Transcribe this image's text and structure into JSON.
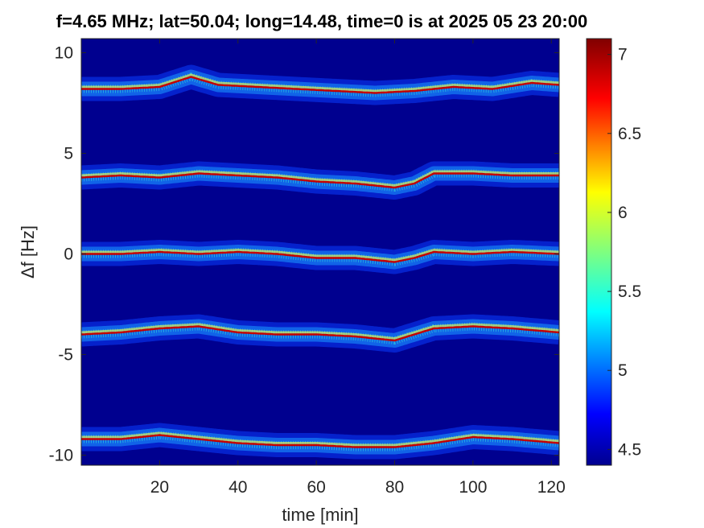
{
  "chart_data": {
    "type": "heatmap",
    "title": "f=4.65 MHz;  lat=50.04; long=14.48, time=0 is at 2025 05 23 20:00",
    "xlabel": "time [min]",
    "ylabel": "Δf [Hz]",
    "xlim": [
      0,
      122
    ],
    "ylim": [
      -10.5,
      10.7
    ],
    "xticks": [
      20,
      40,
      60,
      80,
      100,
      120
    ],
    "yticks": [
      10,
      5,
      0,
      -5,
      -10
    ],
    "ytick_labels": [
      "10",
      "5",
      "0",
      "-5",
      "-10"
    ],
    "colorbar": {
      "range": [
        4.4,
        7.1
      ],
      "ticks": [
        4.5,
        5,
        5.5,
        6,
        6.5,
        7
      ],
      "tick_labels": [
        "4.5",
        "5",
        "5.5",
        "6",
        "6.5",
        "7"
      ],
      "colormap": "jet"
    },
    "background_color": "#00008f",
    "grid": false,
    "series": [
      {
        "center_hz": 8.2,
        "points": [
          [
            0,
            8.2
          ],
          [
            10,
            8.2
          ],
          [
            20,
            8.3
          ],
          [
            28,
            8.8
          ],
          [
            35,
            8.4
          ],
          [
            45,
            8.3
          ],
          [
            55,
            8.2
          ],
          [
            65,
            8.1
          ],
          [
            75,
            8.0
          ],
          [
            85,
            8.1
          ],
          [
            95,
            8.3
          ],
          [
            105,
            8.2
          ],
          [
            115,
            8.5
          ],
          [
            122,
            8.4
          ]
        ]
      },
      {
        "center_hz": 3.9,
        "points": [
          [
            0,
            3.8
          ],
          [
            10,
            3.9
          ],
          [
            20,
            3.8
          ],
          [
            30,
            4.0
          ],
          [
            40,
            3.9
          ],
          [
            50,
            3.8
          ],
          [
            60,
            3.6
          ],
          [
            70,
            3.5
          ],
          [
            80,
            3.3
          ],
          [
            85,
            3.5
          ],
          [
            90,
            4.0
          ],
          [
            100,
            4.0
          ],
          [
            110,
            3.9
          ],
          [
            122,
            3.9
          ]
        ]
      },
      {
        "center_hz": 0.0,
        "points": [
          [
            0,
            0.0
          ],
          [
            10,
            0.0
          ],
          [
            20,
            0.1
          ],
          [
            30,
            0.0
          ],
          [
            40,
            0.1
          ],
          [
            50,
            0.0
          ],
          [
            60,
            -0.2
          ],
          [
            70,
            -0.2
          ],
          [
            80,
            -0.4
          ],
          [
            85,
            -0.2
          ],
          [
            90,
            0.1
          ],
          [
            100,
            0.0
          ],
          [
            110,
            0.1
          ],
          [
            122,
            0.0
          ]
        ]
      },
      {
        "center_hz": -3.9,
        "points": [
          [
            0,
            -4.0
          ],
          [
            10,
            -3.9
          ],
          [
            20,
            -3.7
          ],
          [
            30,
            -3.6
          ],
          [
            40,
            -3.9
          ],
          [
            50,
            -4.0
          ],
          [
            60,
            -4.0
          ],
          [
            70,
            -4.1
          ],
          [
            80,
            -4.3
          ],
          [
            85,
            -4.0
          ],
          [
            90,
            -3.7
          ],
          [
            100,
            -3.6
          ],
          [
            110,
            -3.7
          ],
          [
            122,
            -3.9
          ]
        ]
      },
      {
        "center_hz": -9.3,
        "points": [
          [
            0,
            -9.2
          ],
          [
            10,
            -9.2
          ],
          [
            20,
            -9.0
          ],
          [
            30,
            -9.2
          ],
          [
            40,
            -9.4
          ],
          [
            50,
            -9.5
          ],
          [
            60,
            -9.5
          ],
          [
            70,
            -9.6
          ],
          [
            80,
            -9.6
          ],
          [
            90,
            -9.4
          ],
          [
            100,
            -9.1
          ],
          [
            110,
            -9.2
          ],
          [
            122,
            -9.4
          ]
        ]
      }
    ]
  }
}
